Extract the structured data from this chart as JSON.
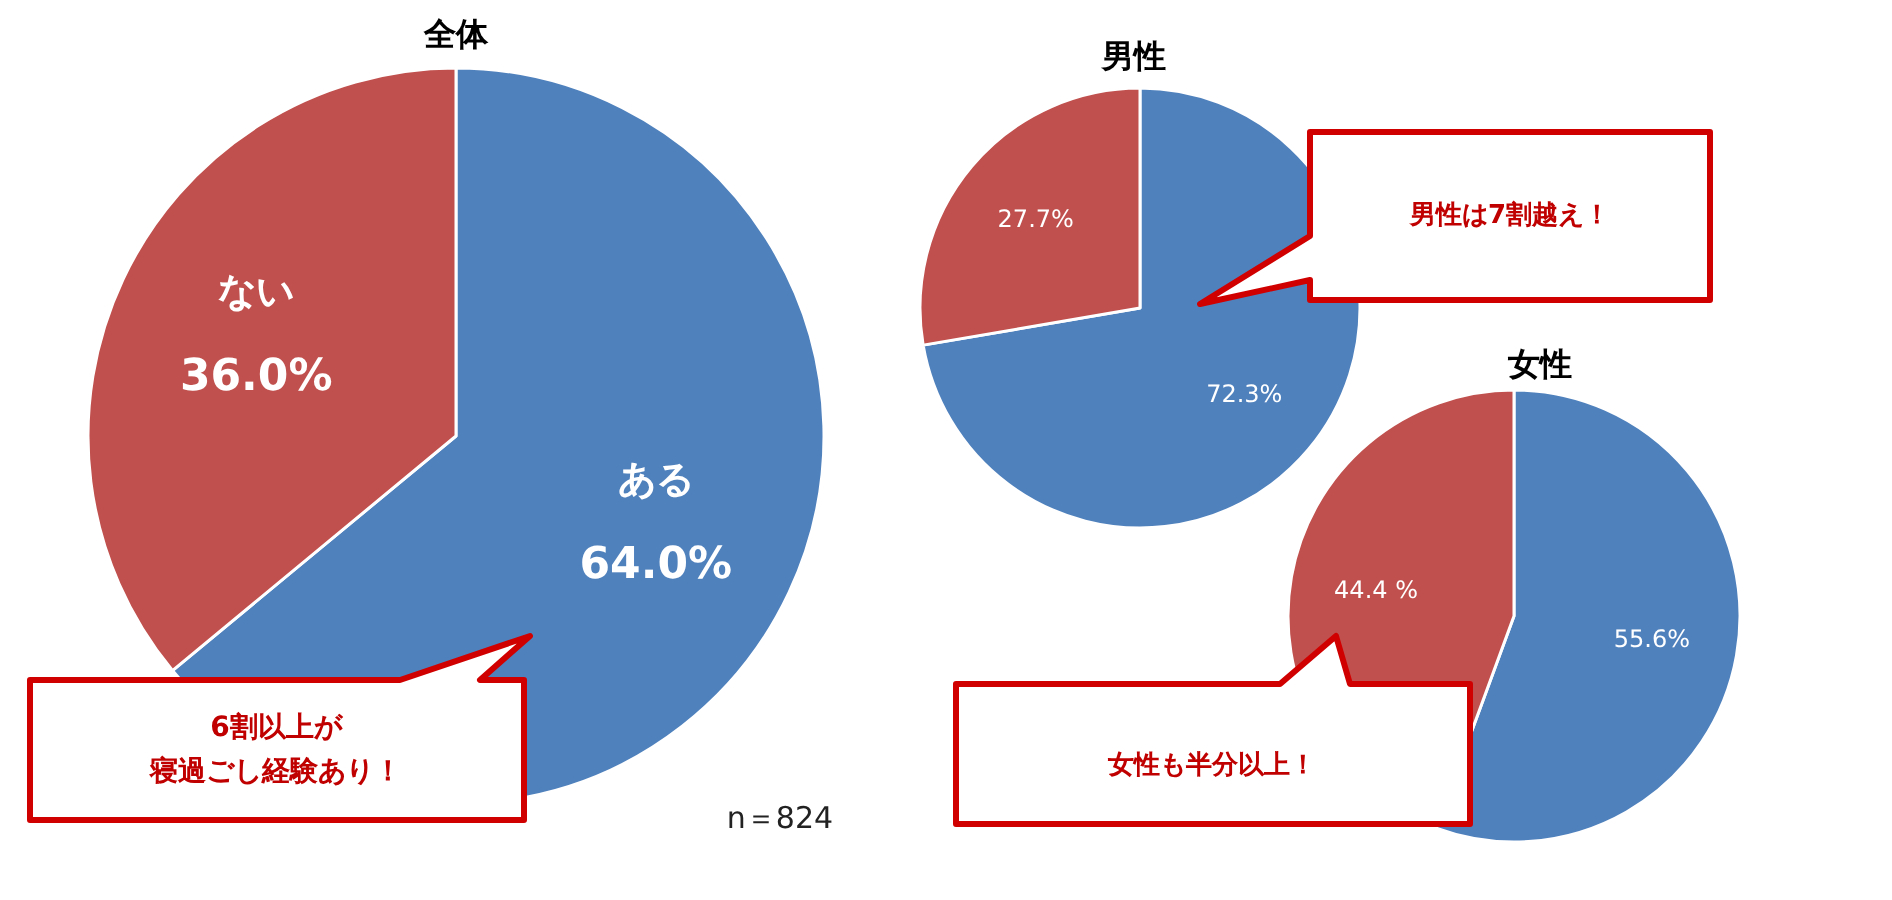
{
  "chart_data": [
    {
      "type": "pie",
      "title": "全体",
      "categories": [
        "ある",
        "ない"
      ],
      "values": [
        64.0,
        36.0
      ],
      "colors": [
        "#4f81bd",
        "#c0504d"
      ],
      "value_labels": [
        "64.0%",
        "36.0%"
      ],
      "annotations": [
        "6割以上が",
        "寝過ごし経験あり！",
        "n＝824"
      ]
    },
    {
      "type": "pie",
      "title": "男性",
      "categories": [
        null,
        null
      ],
      "values": [
        72.3,
        27.7
      ],
      "colors": [
        "#4f81bd",
        "#c0504d"
      ],
      "value_labels": [
        "72.3%",
        "27.7%"
      ],
      "annotations": [
        "男性は7割越え！"
      ]
    },
    {
      "type": "pie",
      "title": "女性",
      "categories": [
        null,
        null
      ],
      "values": [
        55.6,
        44.4
      ],
      "colors": [
        "#4f81bd",
        "#c0504d"
      ],
      "value_labels": [
        "55.6%",
        "44.4 %"
      ],
      "annotations": [
        "女性も半分以上！"
      ]
    }
  ]
}
